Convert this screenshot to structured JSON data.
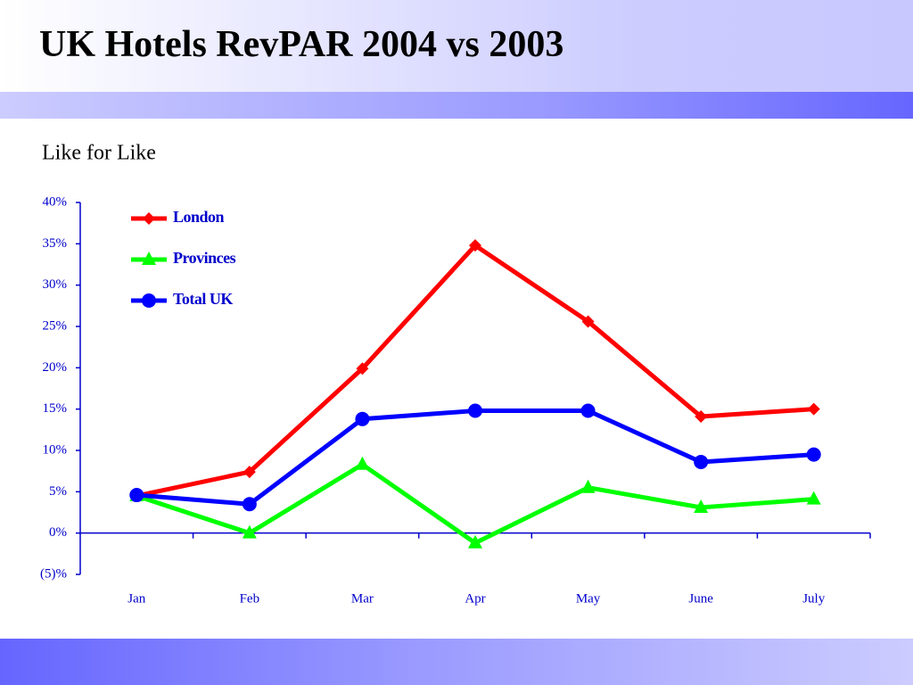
{
  "title": "UK Hotels RevPAR 2004 vs 2003",
  "chart_data": {
    "type": "line",
    "subtitle": "Like for Like",
    "categories": [
      "Jan",
      "Feb",
      "Mar",
      "Apr",
      "May",
      "June",
      "July"
    ],
    "series": [
      {
        "name": "London",
        "color": "#ff0000",
        "marker": "diamond",
        "values": [
          4.5,
          7.4,
          19.9,
          34.8,
          25.6,
          14.1,
          15.0
        ]
      },
      {
        "name": "Provinces",
        "color": "#00ff00",
        "marker": "triangle",
        "values": [
          4.5,
          0,
          8.3,
          -1.2,
          5.5,
          3.1,
          4.1
        ]
      },
      {
        "name": "Total UK",
        "color": "#0000ff",
        "marker": "circle",
        "values": [
          4.6,
          3.5,
          13.8,
          14.8,
          14.8,
          8.6,
          9.5
        ]
      }
    ],
    "ylim": [
      -5,
      40
    ],
    "yticks": [
      {
        "value": -5,
        "label": "(5)%"
      },
      {
        "value": 0,
        "label": "0%"
      },
      {
        "value": 5,
        "label": "5%"
      },
      {
        "value": 10,
        "label": "10%"
      },
      {
        "value": 15,
        "label": "15%"
      },
      {
        "value": 20,
        "label": "20%"
      },
      {
        "value": 25,
        "label": "25%"
      },
      {
        "value": 30,
        "label": "30%"
      },
      {
        "value": 35,
        "label": "35%"
      },
      {
        "value": 40,
        "label": "40%"
      }
    ],
    "legend": "top-left",
    "axis_color": "#0000cc"
  }
}
